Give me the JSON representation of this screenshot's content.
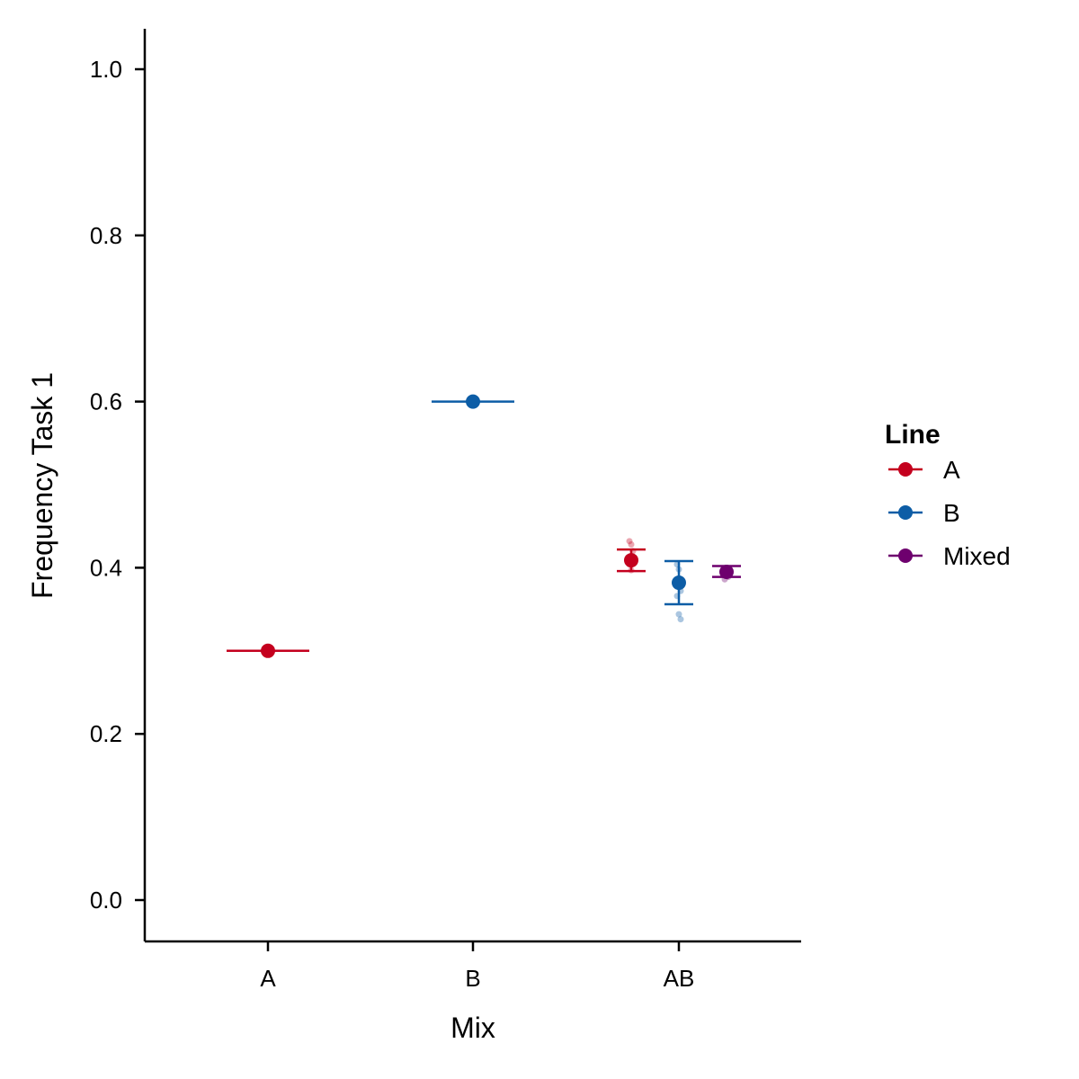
{
  "chart_data": {
    "type": "scatter",
    "title": "",
    "xlabel": "Mix",
    "ylabel": "Frequency Task 1",
    "categories": [
      "A",
      "B",
      "AB"
    ],
    "ylim": [
      -0.05,
      1.05
    ],
    "yticks": [
      "0.0",
      "0.2",
      "0.4",
      "0.6",
      "0.8",
      "1.0"
    ],
    "grid": false,
    "legend": {
      "title": "Line",
      "placement": "right",
      "entries": [
        "A",
        "B",
        "Mixed"
      ]
    },
    "series": [
      {
        "name": "A",
        "color": "#C4001E",
        "points": [
          {
            "category": "A",
            "y": 0.3,
            "ymin": 0.3,
            "ymax": 0.3,
            "raw": []
          },
          {
            "category": "AB",
            "y": 0.409,
            "ymin": 0.396,
            "ymax": 0.422,
            "raw": [
              0.432,
              0.428,
              0.42,
              0.404,
              0.397
            ]
          }
        ]
      },
      {
        "name": "B",
        "color": "#0D5DA6",
        "points": [
          {
            "category": "B",
            "y": 0.6,
            "ymin": 0.6,
            "ymax": 0.6,
            "raw": []
          },
          {
            "category": "AB",
            "y": 0.382,
            "ymin": 0.356,
            "ymax": 0.408,
            "raw": [
              0.404,
              0.398,
              0.372,
              0.366,
              0.344,
              0.338
            ]
          }
        ]
      },
      {
        "name": "Mixed",
        "color": "#6E006E",
        "points": [
          {
            "category": "AB",
            "y": 0.395,
            "ymin": 0.389,
            "ymax": 0.402,
            "raw": [
              0.398,
              0.394,
              0.389,
              0.386
            ]
          }
        ]
      }
    ]
  }
}
